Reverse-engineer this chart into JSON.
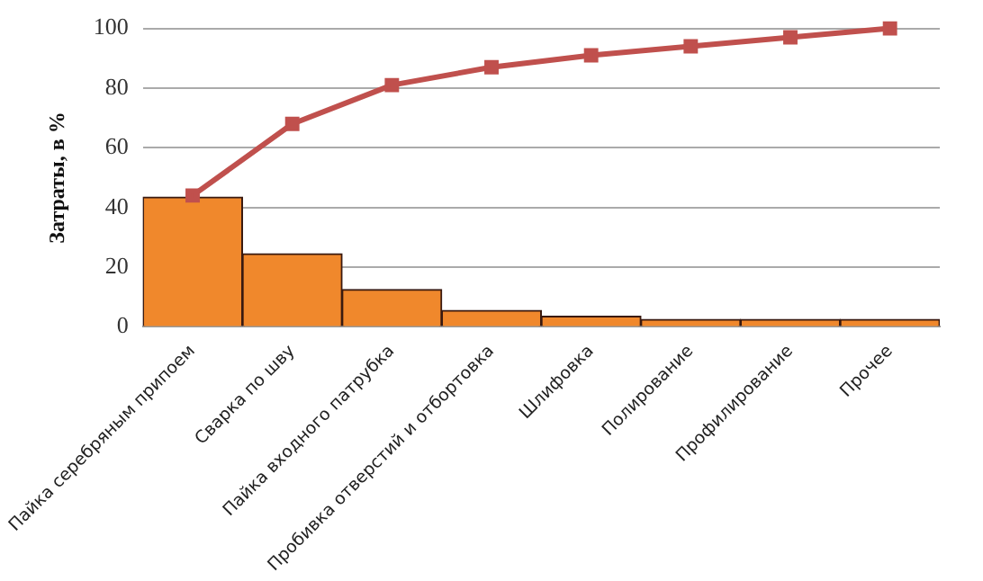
{
  "chart_data": {
    "type": "bar",
    "ylabel": "Затраты, в %",
    "categories": [
      "Пайка серебряным припоем",
      "Сварка по шву",
      "Пайка входного патрубка",
      "Пробивка отверстий и отбортовка",
      "Шлифовка",
      "Полирование",
      "Профилирование",
      "Прочее"
    ],
    "series": [
      {
        "color": "#f0882c",
        "values": [
          43.5,
          24.5,
          12.5,
          5.5,
          3.5,
          2.5,
          2.5,
          2.5
        ]
      },
      {
        "type": "line",
        "color": "#c0504d",
        "marker": "square",
        "values": [
          44,
          68,
          81,
          87,
          91,
          94,
          97,
          100
        ]
      }
    ],
    "ylim": [
      0,
      100
    ],
    "yticks": [
      0,
      20,
      40,
      60,
      80,
      100
    ],
    "grid": "y",
    "legend": false
  }
}
